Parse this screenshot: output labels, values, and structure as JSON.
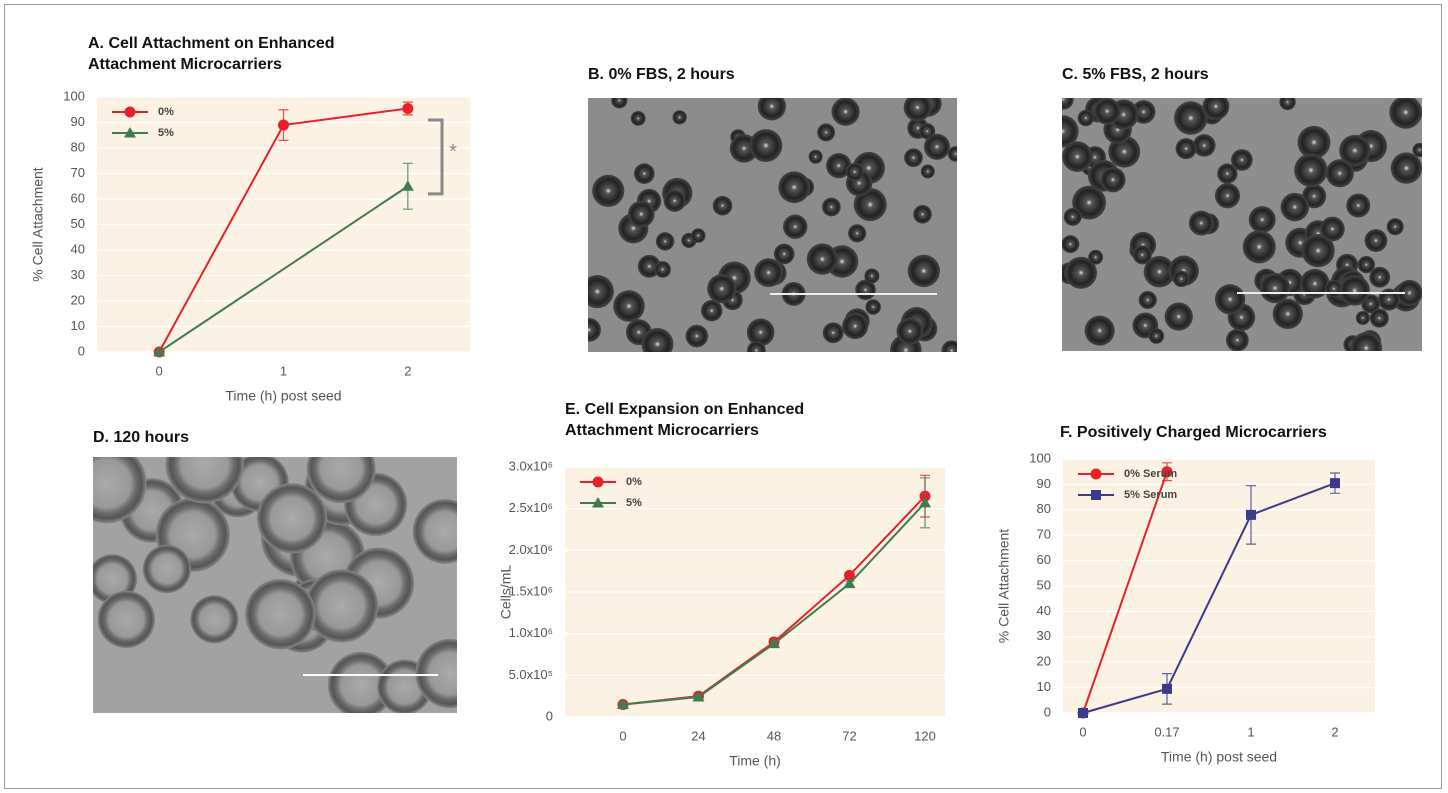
{
  "chart_data": [
    {
      "type": "line",
      "title": "A. Cell Attachment on Enhanced Attachment Microcarriers",
      "xlabel": "Time (h) post seed",
      "ylabel": "% Cell Attachment",
      "xlim": [
        -0.5,
        2.5
      ],
      "xticks": [
        0,
        1,
        2
      ],
      "ylim": [
        0,
        100
      ],
      "yticks": [
        0,
        10,
        20,
        30,
        40,
        50,
        60,
        70,
        80,
        90,
        100
      ],
      "grid": true,
      "legend": "upper left",
      "series": [
        {
          "name": "0%",
          "color": "#e8202a",
          "marker": "circle",
          "x": [
            0,
            1,
            2
          ],
          "values": [
            0,
            89,
            95.5
          ],
          "errors": [
            null,
            6,
            2.5
          ]
        },
        {
          "name": "5%",
          "color": "#3f7d4f",
          "marker": "triangle",
          "x": [
            0,
            2
          ],
          "values": [
            0,
            65
          ],
          "errors": [
            null,
            9
          ]
        }
      ],
      "significance": {
        "label": "*",
        "range": [
          62,
          91
        ]
      }
    },
    {
      "type": "line",
      "title": "E. Cell Expansion on Enhanced Attachment Microcarriers",
      "xlabel": "Time (h)",
      "ylabel": "Cells/mL",
      "categories": [
        "0",
        "24",
        "48",
        "72",
        "120"
      ],
      "ylim": [
        0,
        3000000
      ],
      "yticks": [
        0,
        {
          "value": 500000,
          "label": "5.0x10⁵"
        },
        {
          "value": 1000000,
          "label": "1.0x10⁶"
        },
        {
          "value": 1500000,
          "label": "1.5x10⁶"
        },
        {
          "value": 2000000,
          "label": "2.0x10⁶"
        },
        {
          "value": 2500000,
          "label": "2.5x10⁶"
        },
        {
          "value": 3000000,
          "label": "3.0x10⁶"
        }
      ],
      "grid": true,
      "legend": "upper left",
      "series": [
        {
          "name": "0%",
          "color": "#e8202a",
          "marker": "circle",
          "values": [
            150000,
            250000,
            900000,
            1700000,
            2650000
          ],
          "errors": [
            20000,
            40000,
            40000,
            30000,
            250000
          ]
        },
        {
          "name": "5%",
          "color": "#3f7d4f",
          "marker": "triangle",
          "values": [
            150000,
            240000,
            880000,
            1600000,
            2570000
          ],
          "errors": [
            20000,
            30000,
            30000,
            30000,
            300000
          ]
        }
      ]
    },
    {
      "type": "line",
      "title": "F. Positively Charged Microcarriers",
      "xlabel": "Time (h) post seed",
      "ylabel": "% Cell Attachment",
      "categories": [
        "0",
        "0.17",
        "1",
        "2"
      ],
      "ylim": [
        0,
        100
      ],
      "yticks": [
        0,
        10,
        20,
        30,
        40,
        50,
        60,
        70,
        80,
        90,
        100
      ],
      "grid": true,
      "legend": "upper left",
      "series": [
        {
          "name": "0% Serum",
          "color": "#e8202a",
          "marker": "circle",
          "values": [
            0,
            95,
            null,
            null
          ],
          "errors": [
            null,
            3.5,
            null,
            null
          ]
        },
        {
          "name": "5% Serum",
          "color": "#3b3a8e",
          "marker": "square",
          "values": [
            0,
            9.5,
            78,
            90.5
          ],
          "errors": [
            null,
            6,
            11.5,
            4
          ]
        }
      ]
    }
  ],
  "panels": [
    {
      "title": "B. 0% FBS, 2 hours"
    },
    {
      "title": "C. 5% FBS, 2 hours"
    },
    {
      "title": "D. 120 hours"
    }
  ]
}
